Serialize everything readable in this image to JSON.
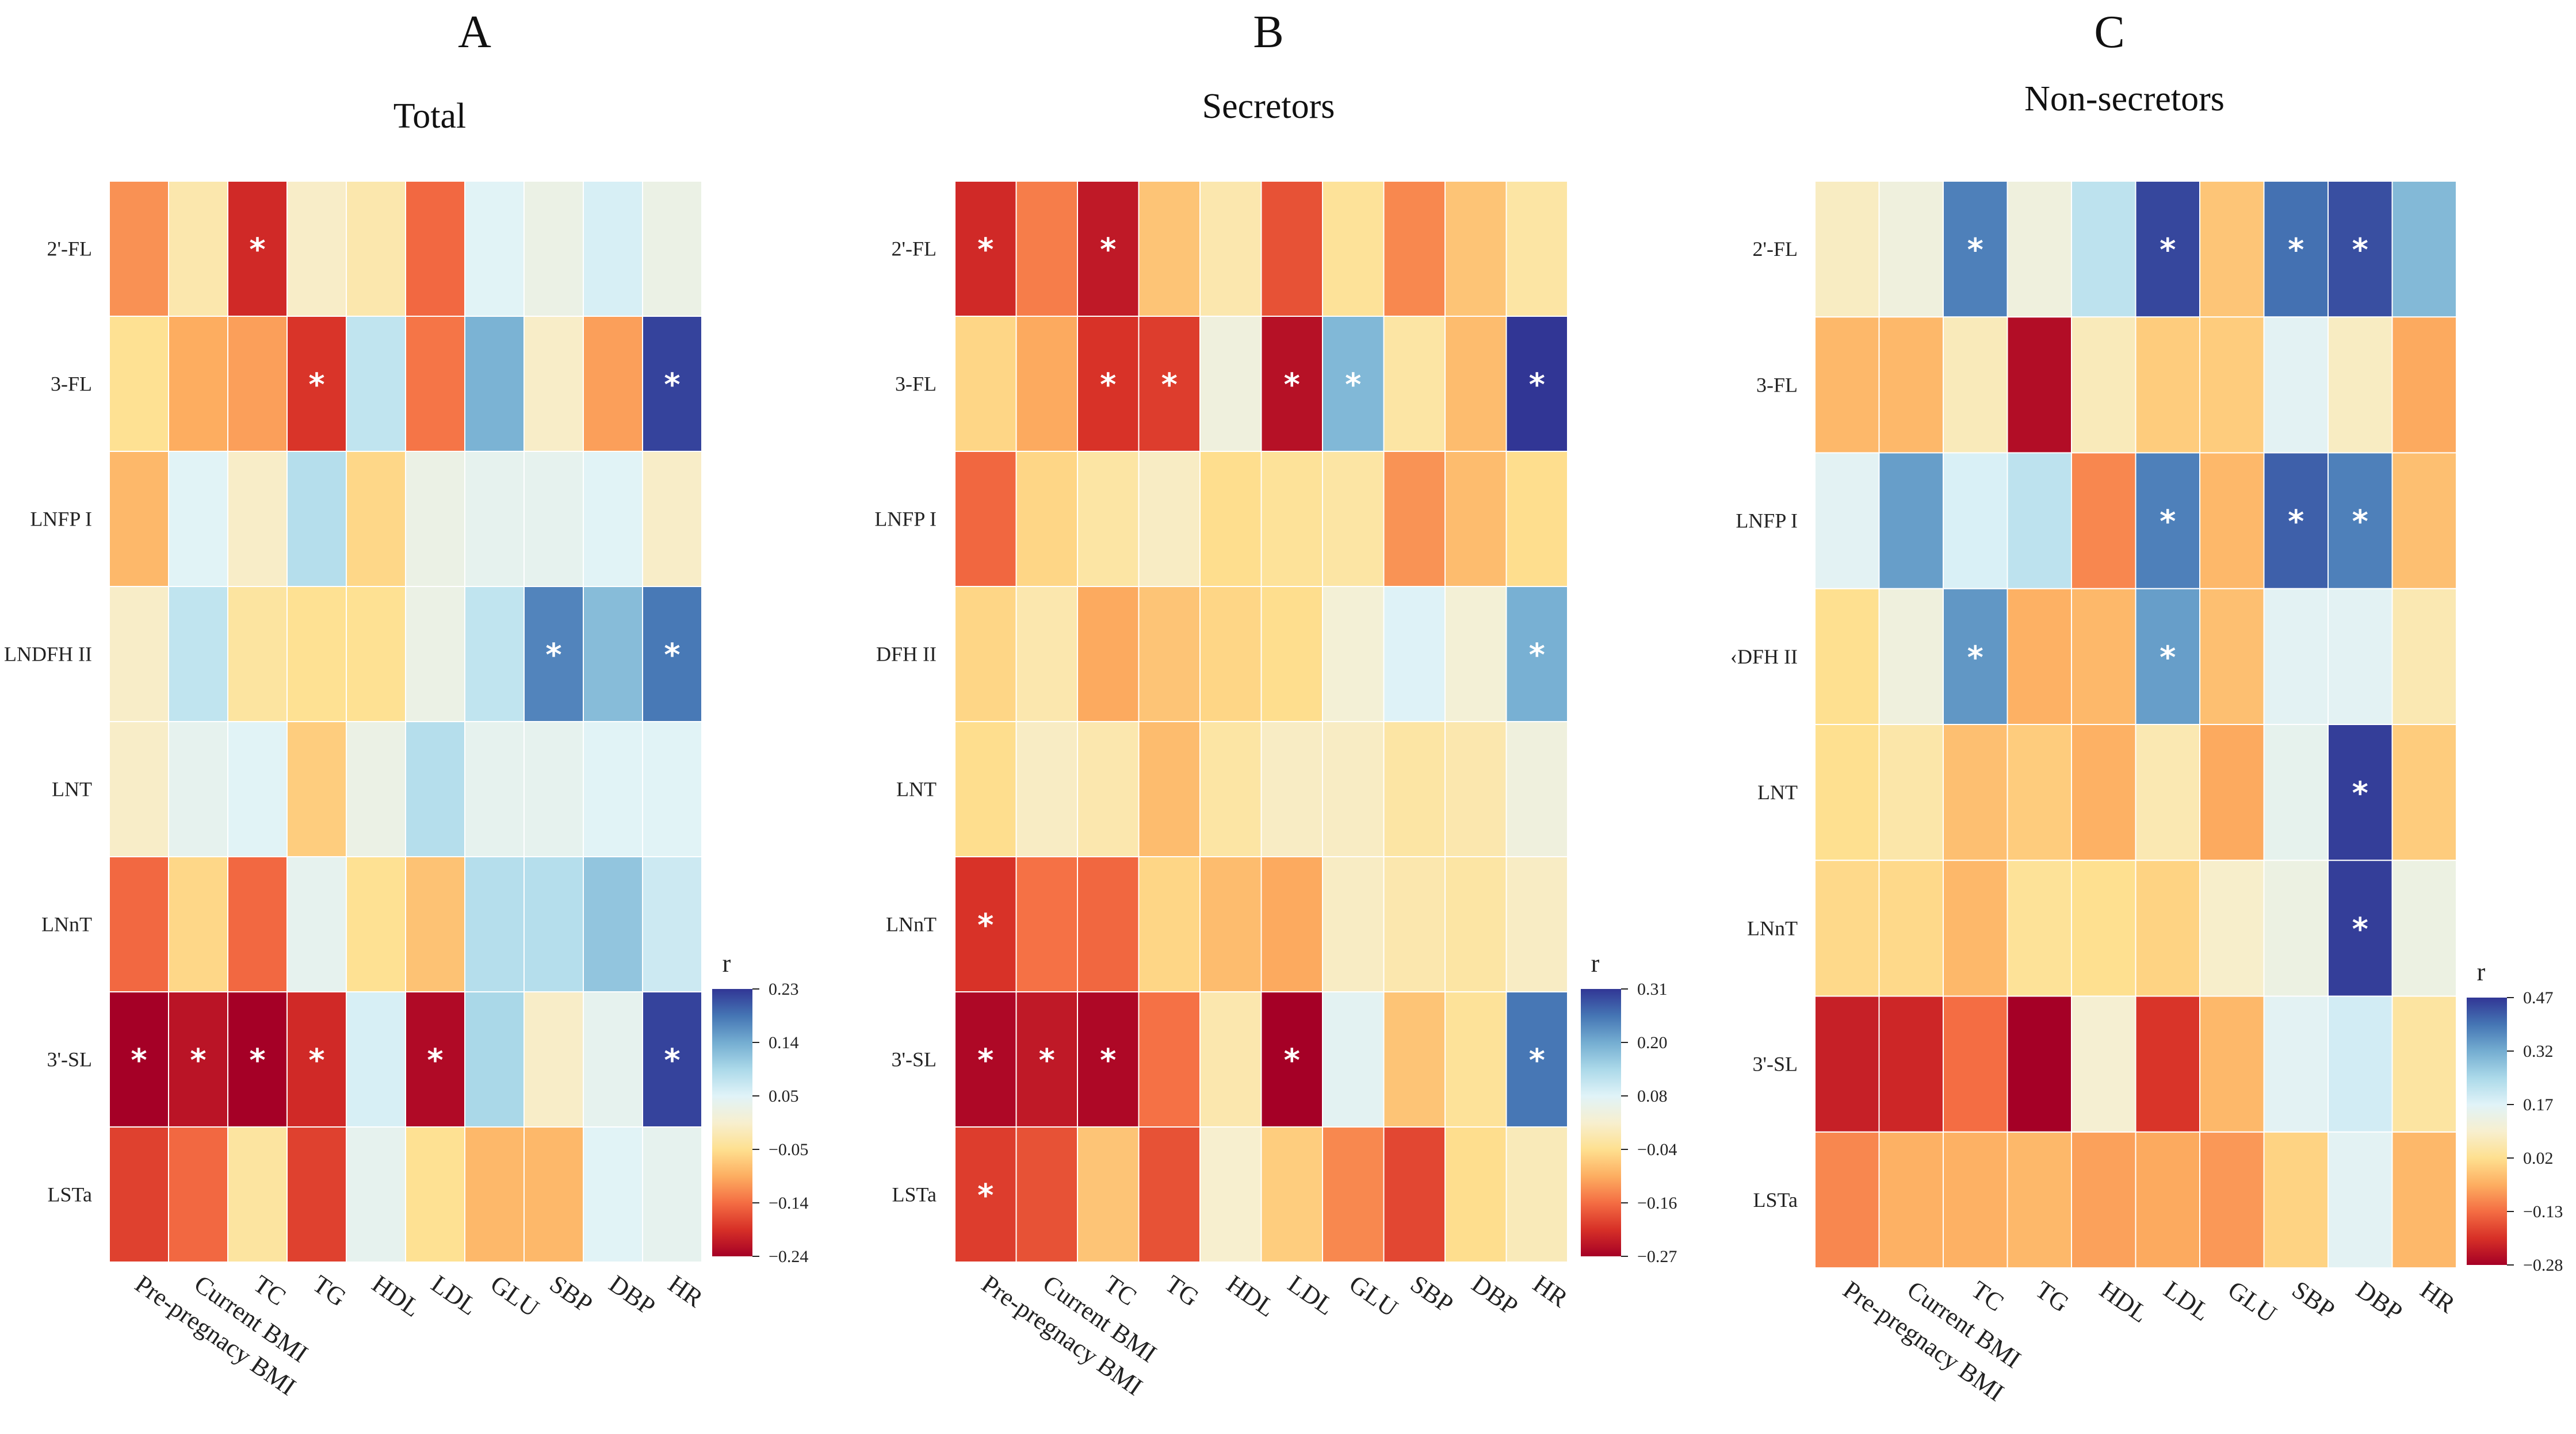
{
  "chart_data": [
    {
      "type": "heatmap",
      "panel": "A",
      "title": "Total",
      "rows": [
        "2'-FL",
        "3-FL",
        "LNFP I",
        "LNDFH II",
        "LNT",
        "LNnT",
        "3'-SL",
        "LSTa"
      ],
      "columns": [
        "Pre-pregnacy BMI",
        "Current BMI",
        "TC",
        "TG",
        "HDL",
        "LDL",
        "GLU",
        "SBP",
        "DBP",
        "HR"
      ],
      "values": [
        [
          -0.12,
          -0.03,
          -0.2,
          -0.01,
          -0.03,
          -0.15,
          0.04,
          0.02,
          0.05,
          0.02
        ],
        [
          -0.05,
          -0.1,
          -0.11,
          -0.19,
          0.07,
          -0.14,
          0.13,
          -0.01,
          -0.11,
          0.22
        ],
        [
          -0.09,
          0.04,
          -0.01,
          0.08,
          -0.06,
          0.02,
          0.03,
          0.03,
          0.04,
          -0.01
        ],
        [
          -0.01,
          0.07,
          -0.04,
          -0.05,
          -0.05,
          0.02,
          0.07,
          0.17,
          0.12,
          0.18
        ],
        [
          -0.01,
          0.03,
          0.04,
          -0.07,
          0.02,
          0.08,
          0.03,
          0.03,
          0.04,
          0.04
        ],
        [
          -0.15,
          -0.06,
          -0.15,
          0.03,
          -0.05,
          -0.08,
          0.08,
          0.08,
          0.11,
          0.06
        ],
        [
          -0.24,
          -0.22,
          -0.24,
          -0.2,
          0.05,
          -0.23,
          0.09,
          -0.01,
          0.03,
          0.22
        ],
        [
          -0.18,
          -0.15,
          -0.04,
          -0.18,
          0.03,
          -0.05,
          -0.09,
          -0.09,
          0.04,
          0.03
        ]
      ],
      "significant": [
        [
          0,
          2
        ],
        [
          1,
          3
        ],
        [
          1,
          9
        ],
        [
          3,
          7
        ],
        [
          3,
          9
        ],
        [
          6,
          0
        ],
        [
          6,
          1
        ],
        [
          6,
          2
        ],
        [
          6,
          3
        ],
        [
          6,
          5
        ],
        [
          6,
          9
        ]
      ],
      "legend": {
        "title": "r",
        "ticks": [
          "0.23",
          "0.14",
          "0.05",
          "−0.05",
          "−0.14",
          "−0.24"
        ],
        "range": [
          -0.24,
          0.23
        ]
      }
    },
    {
      "type": "heatmap",
      "panel": "B",
      "title": "Secretors",
      "rows": [
        "2'-FL",
        "3-FL",
        "LNFP I",
        "DFH II",
        "LNT",
        "LNnT",
        "3'-SL",
        "LSTa"
      ],
      "columns": [
        "Pre-pregnacy BMI",
        "Current BMI",
        "TC",
        "TG",
        "HDL",
        "LDL",
        "GLU",
        "SBP",
        "DBP",
        "HR"
      ],
      "values": [
        [
          -0.22,
          -0.14,
          -0.24,
          -0.07,
          -0.01,
          -0.18,
          -0.03,
          -0.13,
          -0.07,
          -0.02
        ],
        [
          -0.05,
          -0.1,
          -0.21,
          -0.2,
          0.04,
          -0.25,
          0.18,
          -0.02,
          -0.08,
          0.31
        ],
        [
          -0.16,
          -0.05,
          -0.02,
          0.01,
          -0.04,
          -0.03,
          -0.02,
          -0.12,
          -0.08,
          -0.04
        ],
        [
          -0.05,
          -0.01,
          -0.1,
          -0.07,
          -0.05,
          -0.04,
          0.03,
          0.08,
          0.03,
          0.19
        ],
        [
          -0.04,
          0.01,
          -0.01,
          -0.08,
          -0.02,
          0.01,
          0.01,
          -0.02,
          -0.01,
          0.04
        ],
        [
          -0.21,
          -0.15,
          -0.16,
          -0.05,
          -0.08,
          -0.1,
          0.01,
          -0.01,
          -0.02,
          0.01
        ],
        [
          -0.26,
          -0.24,
          -0.26,
          -0.15,
          -0.01,
          -0.27,
          0.07,
          -0.07,
          -0.03,
          0.25
        ],
        [
          -0.2,
          -0.18,
          -0.07,
          -0.18,
          0.02,
          -0.06,
          -0.13,
          -0.19,
          -0.04,
          0.0
        ]
      ],
      "significant": [
        [
          0,
          0
        ],
        [
          0,
          2
        ],
        [
          1,
          2
        ],
        [
          1,
          3
        ],
        [
          1,
          5
        ],
        [
          1,
          6
        ],
        [
          1,
          9
        ],
        [
          3,
          9
        ],
        [
          5,
          0
        ],
        [
          6,
          0
        ],
        [
          6,
          1
        ],
        [
          6,
          2
        ],
        [
          6,
          5
        ],
        [
          6,
          9
        ],
        [
          7,
          0
        ]
      ],
      "legend": {
        "title": "r",
        "ticks": [
          "0.31",
          "0.20",
          "0.08",
          "−0.04",
          "−0.16",
          "−0.27"
        ],
        "range": [
          -0.27,
          0.31
        ]
      }
    },
    {
      "type": "heatmap",
      "panel": "C",
      "title": "Non-secretors",
      "rows": [
        "2'-FL",
        "3-FL",
        "LNFP I",
        "DFH II",
        "LNT",
        "LNnT",
        "3'-SL",
        "LSTa"
      ],
      "row_display": [
        "2'-FL",
        "3-FL",
        "LNFP I",
        "‹DFH II",
        "LNT",
        "LNnT",
        "3'-SL",
        "LSTa"
      ],
      "columns": [
        "Pre-pregnacy BMI",
        "Current BMI",
        "TC",
        "TG",
        "HDL",
        "LDL",
        "GLU",
        "SBP",
        "DBP",
        "HR"
      ],
      "values": [
        [
          0.08,
          0.12,
          0.38,
          0.12,
          0.22,
          0.45,
          -0.02,
          0.4,
          0.44,
          0.3
        ],
        [
          -0.04,
          -0.04,
          0.07,
          -0.26,
          0.07,
          -0.01,
          -0.01,
          0.16,
          0.08,
          -0.06
        ],
        [
          0.16,
          0.34,
          0.18,
          0.22,
          -0.1,
          0.38,
          -0.04,
          0.42,
          0.38,
          -0.03
        ],
        [
          0.02,
          0.12,
          0.35,
          -0.05,
          -0.04,
          0.34,
          -0.03,
          0.16,
          0.16,
          0.06
        ],
        [
          0.02,
          0.05,
          -0.03,
          -0.01,
          -0.05,
          0.06,
          -0.06,
          0.15,
          0.46,
          -0.01
        ],
        [
          0.01,
          0.01,
          -0.04,
          0.03,
          0.02,
          0.0,
          0.09,
          0.13,
          0.46,
          0.13
        ],
        [
          -0.23,
          -0.22,
          -0.13,
          -0.28,
          0.1,
          -0.2,
          -0.04,
          0.16,
          0.19,
          0.04
        ],
        [
          -0.1,
          -0.05,
          -0.05,
          -0.04,
          -0.07,
          -0.06,
          -0.08,
          0.0,
          0.16,
          -0.04
        ]
      ],
      "significant": [
        [
          0,
          2
        ],
        [
          0,
          5
        ],
        [
          0,
          7
        ],
        [
          0,
          8
        ],
        [
          2,
          5
        ],
        [
          2,
          7
        ],
        [
          2,
          8
        ],
        [
          3,
          2
        ],
        [
          3,
          5
        ],
        [
          4,
          8
        ],
        [
          5,
          8
        ]
      ],
      "legend": {
        "title": "r",
        "ticks": [
          "0.47",
          "0.32",
          "0.17",
          "0.02",
          "−0.13",
          "−0.28"
        ],
        "range": [
          -0.28,
          0.47
        ]
      }
    }
  ],
  "star_symbol": "*"
}
